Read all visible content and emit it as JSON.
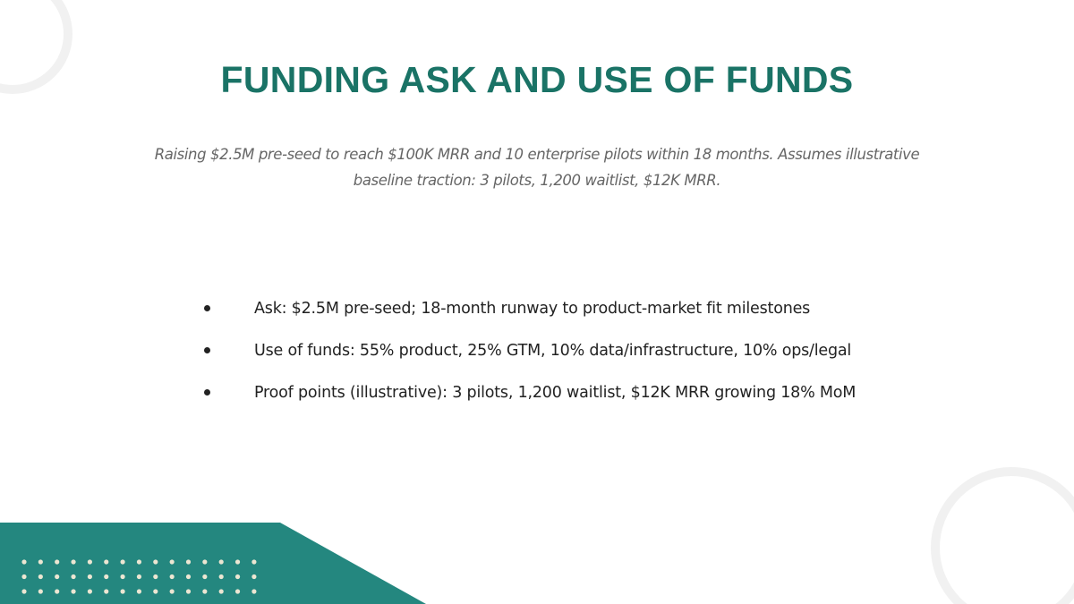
{
  "slide": {
    "title": "FUNDING ASK AND USE OF FUNDS",
    "subtitle": "Raising $2.5M pre-seed to reach $100K MRR and 10 enterprise pilots within 18 months. Assumes illustrative baseline traction: 3 pilots, 1,200 waitlist, $12K MRR.",
    "bullets": [
      "Ask: $2.5M pre-seed; 18-month runway to product-market fit milestones",
      "Use of funds: 55% product, 25% GTM, 10% data/infrastructure, 10% ops/legal",
      "Proof points (illustrative): 3 pilots, 1,200 waitlist, $12K MRR growing 18% MoM"
    ]
  },
  "colors": {
    "title": "#1a7366",
    "accent_band": "#24877f",
    "dots": "#ece6d2",
    "rings": "#f1f1f1"
  }
}
